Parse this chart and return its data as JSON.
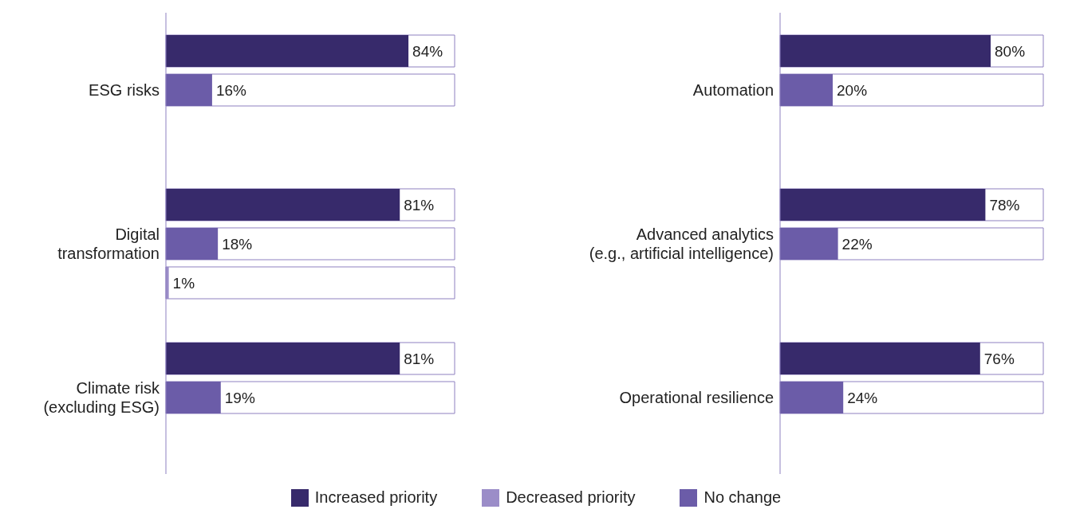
{
  "chart_data": [
    {
      "type": "bar",
      "orientation": "horizontal",
      "categories": [
        "ESG risks",
        "Digital\ntransformation",
        "Climate risk\n(excluding ESG)"
      ],
      "xlim": [
        0,
        100
      ],
      "tick_labels": "y",
      "legend": "bottom",
      "series": [
        {
          "name": "Increased priority",
          "color": "#372a6b",
          "values": [
            84,
            81,
            81
          ],
          "value_labels": [
            "84%",
            "81%",
            "81%"
          ]
        },
        {
          "name": "No change",
          "color": "#6b5ca8",
          "values": [
            16,
            18,
            19
          ],
          "value_labels": [
            "16%",
            "18%",
            "19%"
          ]
        },
        {
          "name": "Decreased priority",
          "color": "#9b8dc8",
          "values": [
            0,
            1,
            0
          ],
          "value_labels": [
            null,
            "1%",
            null
          ]
        }
      ]
    },
    {
      "type": "bar",
      "orientation": "horizontal",
      "categories": [
        "Automation",
        "Advanced analytics\n(e.g., artificial intelligence)",
        "Operational resilience"
      ],
      "xlim": [
        0,
        100
      ],
      "tick_labels": "y",
      "series": [
        {
          "color": "#372a6b",
          "values": [
            80,
            78,
            76
          ],
          "value_labels": [
            "80%",
            "78%",
            "76%"
          ]
        },
        {
          "color": "#6b5ca8",
          "values": [
            20,
            22,
            24
          ],
          "value_labels": [
            "20%",
            "22%",
            "24%"
          ]
        },
        {
          "color": "#9b8dc8",
          "values": [
            0,
            0,
            0
          ],
          "value_labels": [
            null,
            null,
            null
          ]
        }
      ]
    }
  ]
}
